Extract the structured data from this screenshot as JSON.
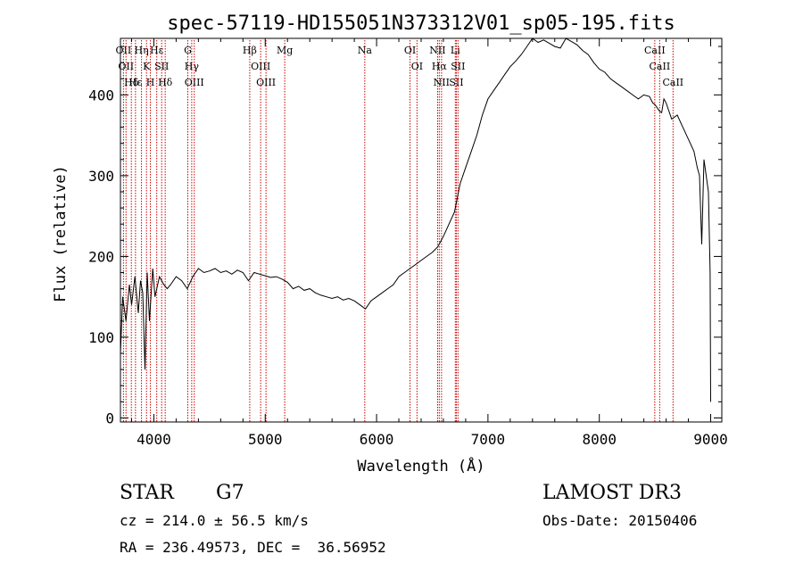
{
  "chart_data": {
    "type": "line",
    "title": "spec-57119-HD155051N373312V01_sp05-195.fits",
    "xlabel": "Wavelength (Å)",
    "ylabel": "Flux (relative)",
    "xlim": [
      3700,
      9100
    ],
    "ylim": [
      -5,
      470
    ],
    "xticks": [
      4000,
      5000,
      6000,
      7000,
      8000,
      9000
    ],
    "yticks": [
      0,
      100,
      200,
      300,
      400
    ],
    "grid": false,
    "line_color": "#000000",
    "marker_color": "#cc0000",
    "series": [
      {
        "name": "flux",
        "points": [
          [
            3700,
            80
          ],
          [
            3720,
            150
          ],
          [
            3750,
            120
          ],
          [
            3780,
            165
          ],
          [
            3800,
            140
          ],
          [
            3830,
            175
          ],
          [
            3860,
            130
          ],
          [
            3880,
            170
          ],
          [
            3900,
            155
          ],
          [
            3920,
            60
          ],
          [
            3940,
            180
          ],
          [
            3960,
            120
          ],
          [
            3990,
            185
          ],
          [
            4010,
            150
          ],
          [
            4050,
            175
          ],
          [
            4090,
            165
          ],
          [
            4120,
            160
          ],
          [
            4150,
            165
          ],
          [
            4200,
            175
          ],
          [
            4250,
            170
          ],
          [
            4300,
            160
          ],
          [
            4350,
            175
          ],
          [
            4400,
            185
          ],
          [
            4450,
            180
          ],
          [
            4500,
            182
          ],
          [
            4550,
            185
          ],
          [
            4600,
            180
          ],
          [
            4650,
            182
          ],
          [
            4700,
            178
          ],
          [
            4750,
            183
          ],
          [
            4800,
            180
          ],
          [
            4850,
            170
          ],
          [
            4900,
            180
          ],
          [
            4950,
            178
          ],
          [
            5000,
            176
          ],
          [
            5050,
            174
          ],
          [
            5100,
            175
          ],
          [
            5150,
            172
          ],
          [
            5200,
            168
          ],
          [
            5250,
            160
          ],
          [
            5300,
            163
          ],
          [
            5350,
            158
          ],
          [
            5400,
            160
          ],
          [
            5450,
            155
          ],
          [
            5500,
            152
          ],
          [
            5550,
            150
          ],
          [
            5600,
            148
          ],
          [
            5650,
            150
          ],
          [
            5700,
            146
          ],
          [
            5750,
            148
          ],
          [
            5800,
            145
          ],
          [
            5850,
            140
          ],
          [
            5900,
            135
          ],
          [
            5950,
            145
          ],
          [
            6000,
            150
          ],
          [
            6050,
            155
          ],
          [
            6100,
            160
          ],
          [
            6150,
            165
          ],
          [
            6200,
            175
          ],
          [
            6250,
            180
          ],
          [
            6300,
            185
          ],
          [
            6350,
            190
          ],
          [
            6400,
            195
          ],
          [
            6450,
            200
          ],
          [
            6500,
            205
          ],
          [
            6550,
            212
          ],
          [
            6600,
            225
          ],
          [
            6650,
            240
          ],
          [
            6700,
            255
          ],
          [
            6750,
            290
          ],
          [
            6800,
            310
          ],
          [
            6850,
            330
          ],
          [
            6900,
            350
          ],
          [
            6950,
            375
          ],
          [
            7000,
            395
          ],
          [
            7050,
            405
          ],
          [
            7100,
            415
          ],
          [
            7150,
            425
          ],
          [
            7200,
            435
          ],
          [
            7250,
            442
          ],
          [
            7300,
            450
          ],
          [
            7350,
            460
          ],
          [
            7400,
            470
          ],
          [
            7450,
            465
          ],
          [
            7500,
            468
          ],
          [
            7550,
            464
          ],
          [
            7600,
            460
          ],
          [
            7650,
            458
          ],
          [
            7700,
            470
          ],
          [
            7750,
            466
          ],
          [
            7800,
            462
          ],
          [
            7850,
            455
          ],
          [
            7900,
            450
          ],
          [
            7950,
            440
          ],
          [
            8000,
            432
          ],
          [
            8050,
            428
          ],
          [
            8100,
            420
          ],
          [
            8150,
            415
          ],
          [
            8200,
            410
          ],
          [
            8250,
            405
          ],
          [
            8300,
            400
          ],
          [
            8350,
            395
          ],
          [
            8400,
            400
          ],
          [
            8450,
            398
          ],
          [
            8480,
            390
          ],
          [
            8500,
            388
          ],
          [
            8540,
            380
          ],
          [
            8560,
            378
          ],
          [
            8580,
            395
          ],
          [
            8600,
            390
          ],
          [
            8650,
            370
          ],
          [
            8670,
            372
          ],
          [
            8700,
            375
          ],
          [
            8750,
            360
          ],
          [
            8800,
            345
          ],
          [
            8850,
            330
          ],
          [
            8880,
            310
          ],
          [
            8900,
            300
          ],
          [
            8920,
            215
          ],
          [
            8940,
            320
          ],
          [
            8960,
            300
          ],
          [
            8980,
            280
          ],
          [
            8995,
            180
          ],
          [
            9000,
            20
          ]
        ]
      }
    ],
    "line_markers": [
      {
        "wl": 3727,
        "label": "OII"
      },
      {
        "wl": 3750,
        "label": "OII"
      },
      {
        "wl": 3798,
        "label": "Hδ"
      },
      {
        "wl": 3835,
        "label": "Hε"
      },
      {
        "wl": 3889,
        "label": "Hη"
      },
      {
        "wl": 3934,
        "label": "K"
      },
      {
        "wl": 3969,
        "label": "H"
      },
      {
        "wl": 4026,
        "label": "Hε"
      },
      {
        "wl": 4070,
        "label": "SII"
      },
      {
        "wl": 4102,
        "label": "Hδ"
      },
      {
        "wl": 4305,
        "label": "G"
      },
      {
        "wl": 4340,
        "label": "Hγ"
      },
      {
        "wl": 4363,
        "label": "OIII"
      },
      {
        "wl": 4861,
        "label": "Hβ"
      },
      {
        "wl": 4959,
        "label": "OIII"
      },
      {
        "wl": 5007,
        "label": "OIII"
      },
      {
        "wl": 5175,
        "label": "Mg"
      },
      {
        "wl": 5894,
        "label": "Na"
      },
      {
        "wl": 6300,
        "label": "OI"
      },
      {
        "wl": 6363,
        "label": "OI"
      },
      {
        "wl": 6548,
        "label": "NII"
      },
      {
        "wl": 6563,
        "label": "Hα"
      },
      {
        "wl": 6583,
        "label": "NII"
      },
      {
        "wl": 6707,
        "label": "Li"
      },
      {
        "wl": 6716,
        "label": "SII"
      },
      {
        "wl": 6731,
        "label": "SII"
      },
      {
        "wl": 8498,
        "label": "CaII"
      },
      {
        "wl": 8542,
        "label": "CaII"
      },
      {
        "wl": 8662,
        "label": "CaII"
      }
    ]
  },
  "info": {
    "object_class": "STAR",
    "subclass": "G7",
    "survey": "LAMOST DR3",
    "cz": "cz = 214.0 ± 56.5 km/s",
    "obs_date": "Obs-Date: 20150406",
    "coords": "RA = 236.49573, DEC =  36.56952"
  }
}
